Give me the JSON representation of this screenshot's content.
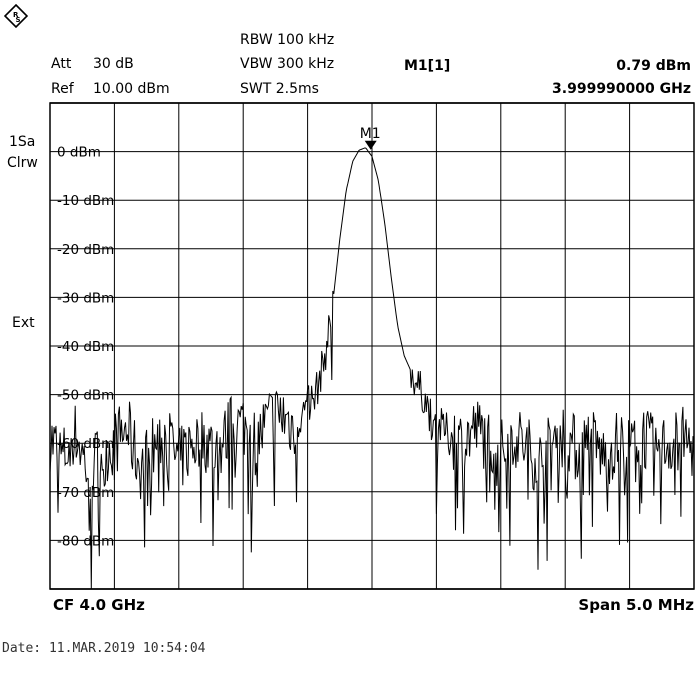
{
  "header": {
    "att_label": "Att",
    "att_value": "30 dB",
    "ref_label": "Ref",
    "ref_value": "10.00 dBm",
    "rbw": "RBW 100 kHz",
    "vbw": "VBW 300 kHz",
    "swt": "SWT 2.5ms",
    "marker_name": "M1[1]",
    "marker_level": "0.79 dBm",
    "marker_freq": "3.999990000 GHz"
  },
  "side_labels": {
    "trace_mode": "1Sa",
    "trace_detector": "Clrw",
    "trigger": "Ext"
  },
  "chart_data": {
    "type": "line",
    "title": "",
    "xlabel": "",
    "ylabel": "",
    "center_frequency": "CF 4.0 GHz",
    "span": "Span 5.0 MHz",
    "x_unit": "MHz offset from center",
    "xlim": [
      -2.5,
      2.5
    ],
    "ylim": [
      -90,
      10
    ],
    "ytick_labels": [
      "0 dBm",
      "-10 dBm",
      "-20 dBm",
      "-30 dBm",
      "-40 dBm",
      "-50 dBm",
      "-60 dBm",
      "-70 dBm",
      "-80 dBm"
    ],
    "ytick_values": [
      0,
      -10,
      -20,
      -30,
      -40,
      -50,
      -60,
      -70,
      -80
    ],
    "grid": true,
    "marker": {
      "label": "M1",
      "x": -0.01,
      "y": 0.79
    },
    "series": [
      {
        "x": [
          -2.5,
          -2.4,
          -2.3,
          -2.2,
          -2.1,
          -2.0,
          -1.9,
          -1.8,
          -1.7,
          -1.6,
          -1.5,
          -1.4,
          -1.3,
          -1.2,
          -1.1,
          -1.0,
          -0.9,
          -0.8,
          -0.7,
          -0.6,
          -0.5,
          -0.45,
          -0.4,
          -0.35,
          -0.3,
          -0.25,
          -0.2,
          -0.15,
          -0.1,
          -0.05,
          0.0,
          0.05,
          0.1,
          0.15,
          0.2,
          0.25,
          0.3,
          0.35,
          0.4,
          0.45,
          0.5,
          0.6,
          0.7,
          0.8,
          0.9,
          1.0,
          1.1,
          1.2,
          1.3,
          1.4,
          1.5,
          1.6,
          1.7,
          1.8,
          1.9,
          2.0,
          2.1,
          2.2,
          2.3,
          2.4,
          2.5
        ],
        "y": [
          -59,
          -63,
          -58,
          -66,
          -62,
          -60,
          -57,
          -65,
          -61,
          -58,
          -64,
          -60,
          -59,
          -62,
          -57,
          -56,
          -60,
          -55,
          -54,
          -57,
          -52,
          -51,
          -46,
          -40,
          -30,
          -18,
          -8,
          -2,
          0.3,
          0.8,
          -1,
          -6,
          -15,
          -26,
          -36,
          -42,
          -45,
          -48,
          -50,
          -54,
          -56,
          -58,
          -60,
          -57,
          -59,
          -62,
          -58,
          -61,
          -64,
          -60,
          -58,
          -62,
          -59,
          -63,
          -60,
          -61,
          -58,
          -62,
          -60,
          -59,
          -61
        ]
      }
    ]
  },
  "footer": {
    "cf": "CF 4.0 GHz",
    "span": "Span 5.0 MHz"
  },
  "date_stamp": "Date: 11.MAR.2019  10:54:04"
}
